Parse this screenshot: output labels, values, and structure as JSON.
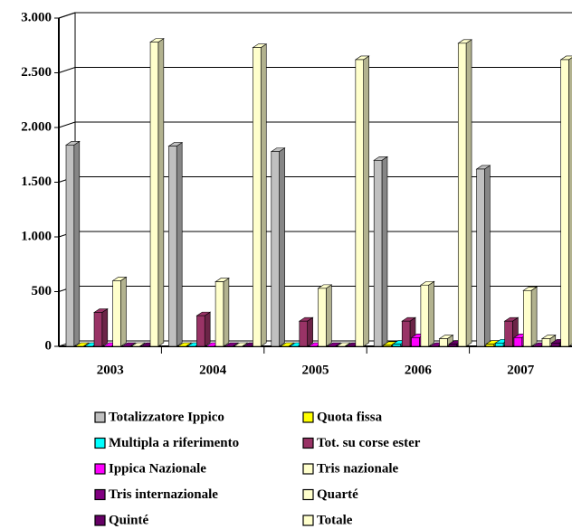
{
  "chart_data": {
    "type": "bar3d",
    "categories": [
      "2003",
      "2004",
      "2005",
      "2006",
      "2007"
    ],
    "series": [
      {
        "name": "Totalizzatore Ippico",
        "color": "#c0c0c0",
        "values": [
          1840,
          1830,
          1780,
          1700,
          1620
        ]
      },
      {
        "name": "Quota fissa",
        "color": "#ffff00",
        "values": [
          0,
          0,
          0,
          10,
          20
        ]
      },
      {
        "name": "Multipla a riferimento",
        "color": "#00ffff",
        "values": [
          0,
          0,
          0,
          20,
          30
        ]
      },
      {
        "name": "Tot. su corse ester",
        "color": "#993366",
        "values": [
          310,
          280,
          230,
          230,
          230
        ]
      },
      {
        "name": "Ippica Nazionale",
        "color": "#ff00ff",
        "values": [
          0,
          0,
          0,
          80,
          80
        ]
      },
      {
        "name": "Tris nazionale",
        "color": "#ffffcc",
        "values": [
          600,
          590,
          530,
          560,
          510
        ]
      },
      {
        "name": "Tris internazionale",
        "color": "#800080",
        "values": [
          0,
          0,
          0,
          0,
          0
        ]
      },
      {
        "name": "Quarté",
        "color": "#ffffcc",
        "values": [
          0,
          0,
          0,
          70,
          70
        ]
      },
      {
        "name": "Quinté",
        "color": "#660066",
        "values": [
          0,
          0,
          0,
          20,
          30
        ]
      },
      {
        "name": "Totale",
        "color": "#ffffcc",
        "values": [
          2780,
          2730,
          2620,
          2770,
          2620
        ]
      }
    ],
    "ylim": [
      0,
      3000
    ],
    "yticks": [
      0,
      500,
      {
        "value": 1000,
        "label": "1.000"
      },
      {
        "value": 1500,
        "label": "1.500"
      },
      {
        "value": 2000,
        "label": "2.000"
      },
      {
        "value": 2500,
        "label": "2.500"
      },
      {
        "value": 3000,
        "label": "3.000"
      }
    ],
    "grid": true
  }
}
